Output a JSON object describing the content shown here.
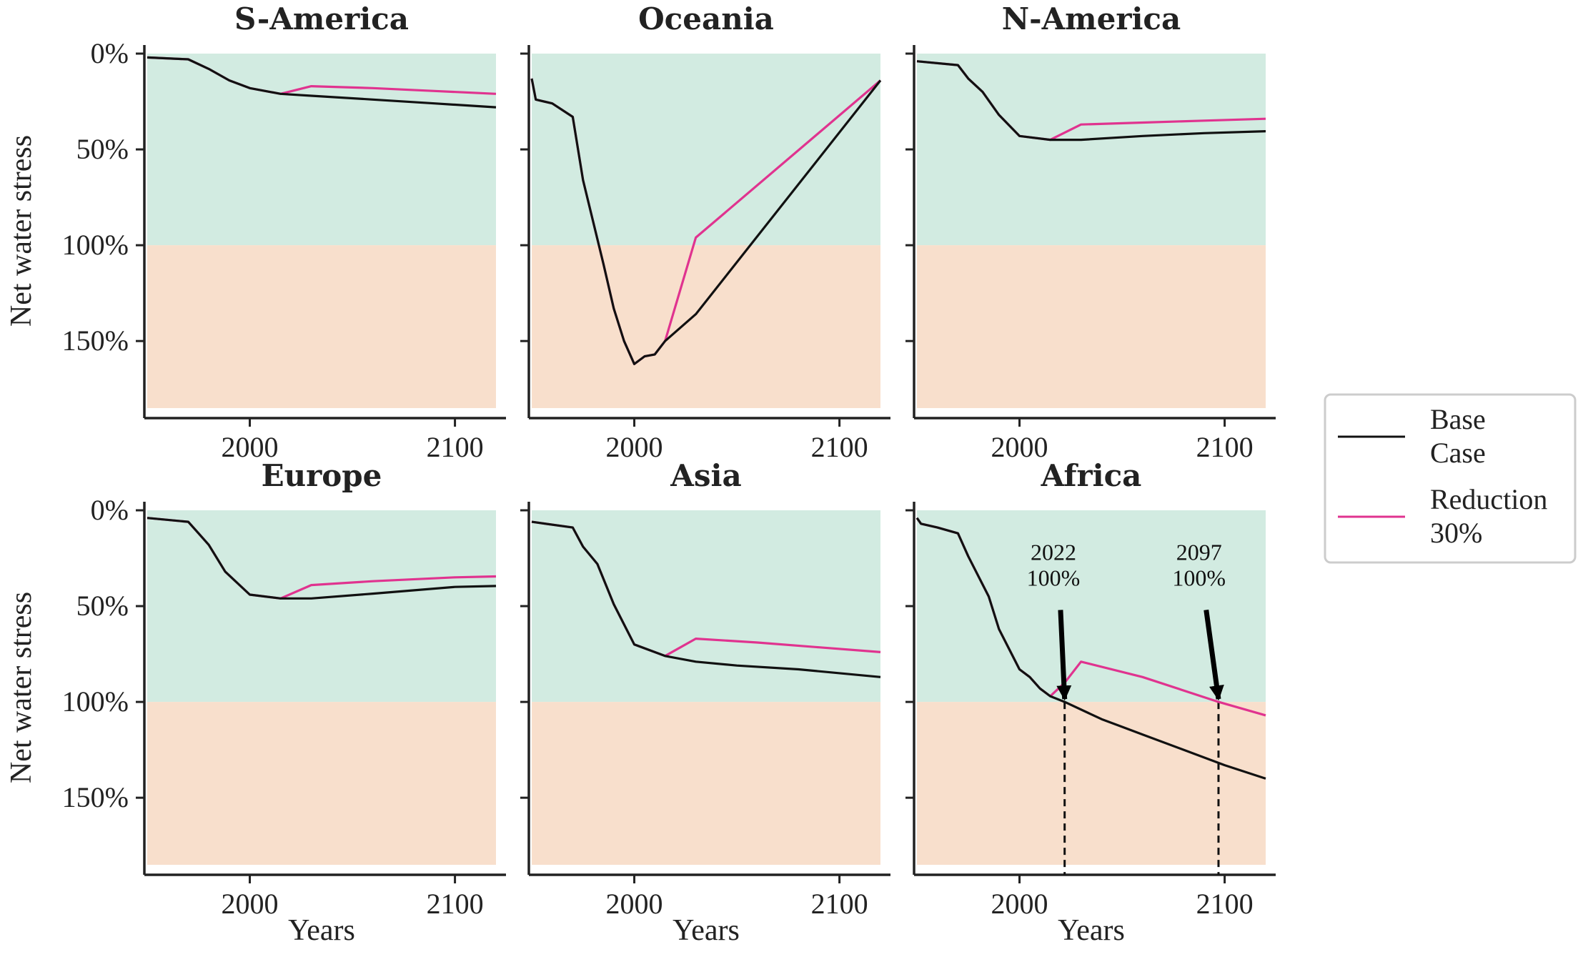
{
  "chart_data": {
    "type": "line",
    "xlabel": "Years",
    "ylabel": "Net water stress",
    "xlim": [
      1950,
      2120
    ],
    "ylim": [
      0,
      185
    ],
    "y_inverted": true,
    "x_ticks": [
      2000,
      2100
    ],
    "x_tick_labels": [
      "2000",
      "2100"
    ],
    "y_ticks": [
      0,
      50,
      100,
      150
    ],
    "y_tick_labels": [
      "0%",
      "50%",
      "100%",
      "150%"
    ],
    "threshold": 100,
    "zone_colors": {
      "below_threshold": "#d2ebe1",
      "above_threshold": "#f8dfcc"
    },
    "legend": {
      "placement": "right",
      "entries": [
        {
          "line1": "Base",
          "line2": "Case",
          "color": "#111111"
        },
        {
          "line1": "Reduction",
          "line2": "30%",
          "color": "#e0338f"
        }
      ]
    },
    "panels": [
      {
        "title": "S-America",
        "series": [
          {
            "key": "base",
            "color": "#111111",
            "x": [
              1950,
              1970,
              1980,
              1990,
              2000,
              2015,
              2030,
              2060,
              2090,
              2120
            ],
            "y": [
              2,
              3,
              8,
              14,
              18,
              21,
              22,
              24,
              26,
              28
            ]
          },
          {
            "key": "reduction",
            "color": "#e0338f",
            "x": [
              1950,
              1970,
              1980,
              1990,
              2000,
              2015,
              2030,
              2060,
              2090,
              2120
            ],
            "y": [
              2,
              3,
              8,
              14,
              18,
              21,
              17,
              18,
              19.5,
              21
            ]
          }
        ]
      },
      {
        "title": "Oceania",
        "series": [
          {
            "key": "base",
            "color": "#111111",
            "x": [
              1950,
              1952,
              1960,
              1970,
              1975,
              1985,
              1990,
              1995,
              2000,
              2005,
              2010,
              2015,
              2030,
              2120
            ],
            "y": [
              13,
              24,
              26,
              33,
              66,
              110,
              133,
              150,
              162,
              158,
              157,
              150,
              136,
              14
            ]
          },
          {
            "key": "reduction",
            "color": "#e0338f",
            "x": [
              1950,
              1952,
              1960,
              1970,
              1975,
              1985,
              1990,
              1995,
              2000,
              2005,
              2010,
              2015,
              2030,
              2120
            ],
            "y": [
              13,
              24,
              26,
              33,
              66,
              110,
              133,
              150,
              162,
              158,
              157,
              150,
              96,
              14
            ]
          }
        ]
      },
      {
        "title": "N-America",
        "series": [
          {
            "key": "base",
            "color": "#111111",
            "x": [
              1950,
              1970,
              1975,
              1982,
              1990,
              2000,
              2015,
              2030,
              2060,
              2090,
              2120
            ],
            "y": [
              4,
              6,
              13,
              20,
              32,
              43,
              45,
              45,
              43,
              41.5,
              40.5
            ]
          },
          {
            "key": "reduction",
            "color": "#e0338f",
            "x": [
              1950,
              1970,
              1975,
              1982,
              1990,
              2000,
              2015,
              2030,
              2060,
              2090,
              2120
            ],
            "y": [
              4,
              6,
              13,
              20,
              32,
              43,
              45,
              37,
              36,
              35,
              34
            ]
          }
        ]
      },
      {
        "title": "Europe",
        "series": [
          {
            "key": "base",
            "color": "#111111",
            "x": [
              1950,
              1970,
              1975,
              1980,
              1988,
              2000,
              2015,
              2030,
              2060,
              2100,
              2120
            ],
            "y": [
              4,
              6,
              12,
              18,
              32,
              44,
              46,
              46,
              43.5,
              40,
              39.5
            ]
          },
          {
            "key": "reduction",
            "color": "#e0338f",
            "x": [
              1950,
              1970,
              1975,
              1980,
              1988,
              2000,
              2015,
              2030,
              2060,
              2100,
              2120
            ],
            "y": [
              4,
              6,
              12,
              18,
              32,
              44,
              46,
              39,
              37,
              35,
              34.5
            ]
          }
        ]
      },
      {
        "title": "Asia",
        "series": [
          {
            "key": "base",
            "color": "#111111",
            "x": [
              1950,
              1970,
              1975,
              1982,
              1990,
              2000,
              2015,
              2030,
              2050,
              2080,
              2120
            ],
            "y": [
              6,
              9,
              19,
              28,
              49,
              70,
              76,
              79,
              81,
              83,
              87
            ]
          },
          {
            "key": "reduction",
            "color": "#e0338f",
            "x": [
              1950,
              1970,
              1975,
              1982,
              1990,
              2000,
              2015,
              2030,
              2060,
              2090,
              2120
            ],
            "y": [
              6,
              9,
              19,
              28,
              49,
              70,
              76,
              67,
              69,
              71.5,
              74
            ]
          }
        ]
      },
      {
        "title": "Africa",
        "series": [
          {
            "key": "base",
            "color": "#111111",
            "x": [
              1950,
              1952,
              1960,
              1970,
              1975,
              1985,
              1990,
              2000,
              2005,
              2010,
              2015,
              2022,
              2040,
              2060,
              2080,
              2100,
              2120
            ],
            "y": [
              4,
              7,
              9,
              12,
              24,
              45,
              62,
              83,
              87,
              93,
              97,
              100,
              109,
              117,
              125,
              133,
              140
            ]
          },
          {
            "key": "reduction",
            "color": "#e0338f",
            "x": [
              1950,
              1952,
              1960,
              1970,
              1975,
              1985,
              1990,
              2000,
              2005,
              2010,
              2015,
              2022,
              2030,
              2060,
              2097,
              2120
            ],
            "y": [
              4,
              7,
              9,
              12,
              24,
              45,
              62,
              83,
              87,
              93,
              97,
              90,
              79,
              87,
              100,
              107
            ]
          }
        ],
        "annotations": [
          {
            "label_line1": "2022",
            "label_line2": "100%",
            "x": 2022,
            "y": 100,
            "arrow_from_x": 2020,
            "arrow_from_y": 52
          },
          {
            "label_line1": "2097",
            "label_line2": "100%",
            "x": 2097,
            "y": 100,
            "arrow_from_x": 2091,
            "arrow_from_y": 52
          }
        ]
      }
    ]
  }
}
